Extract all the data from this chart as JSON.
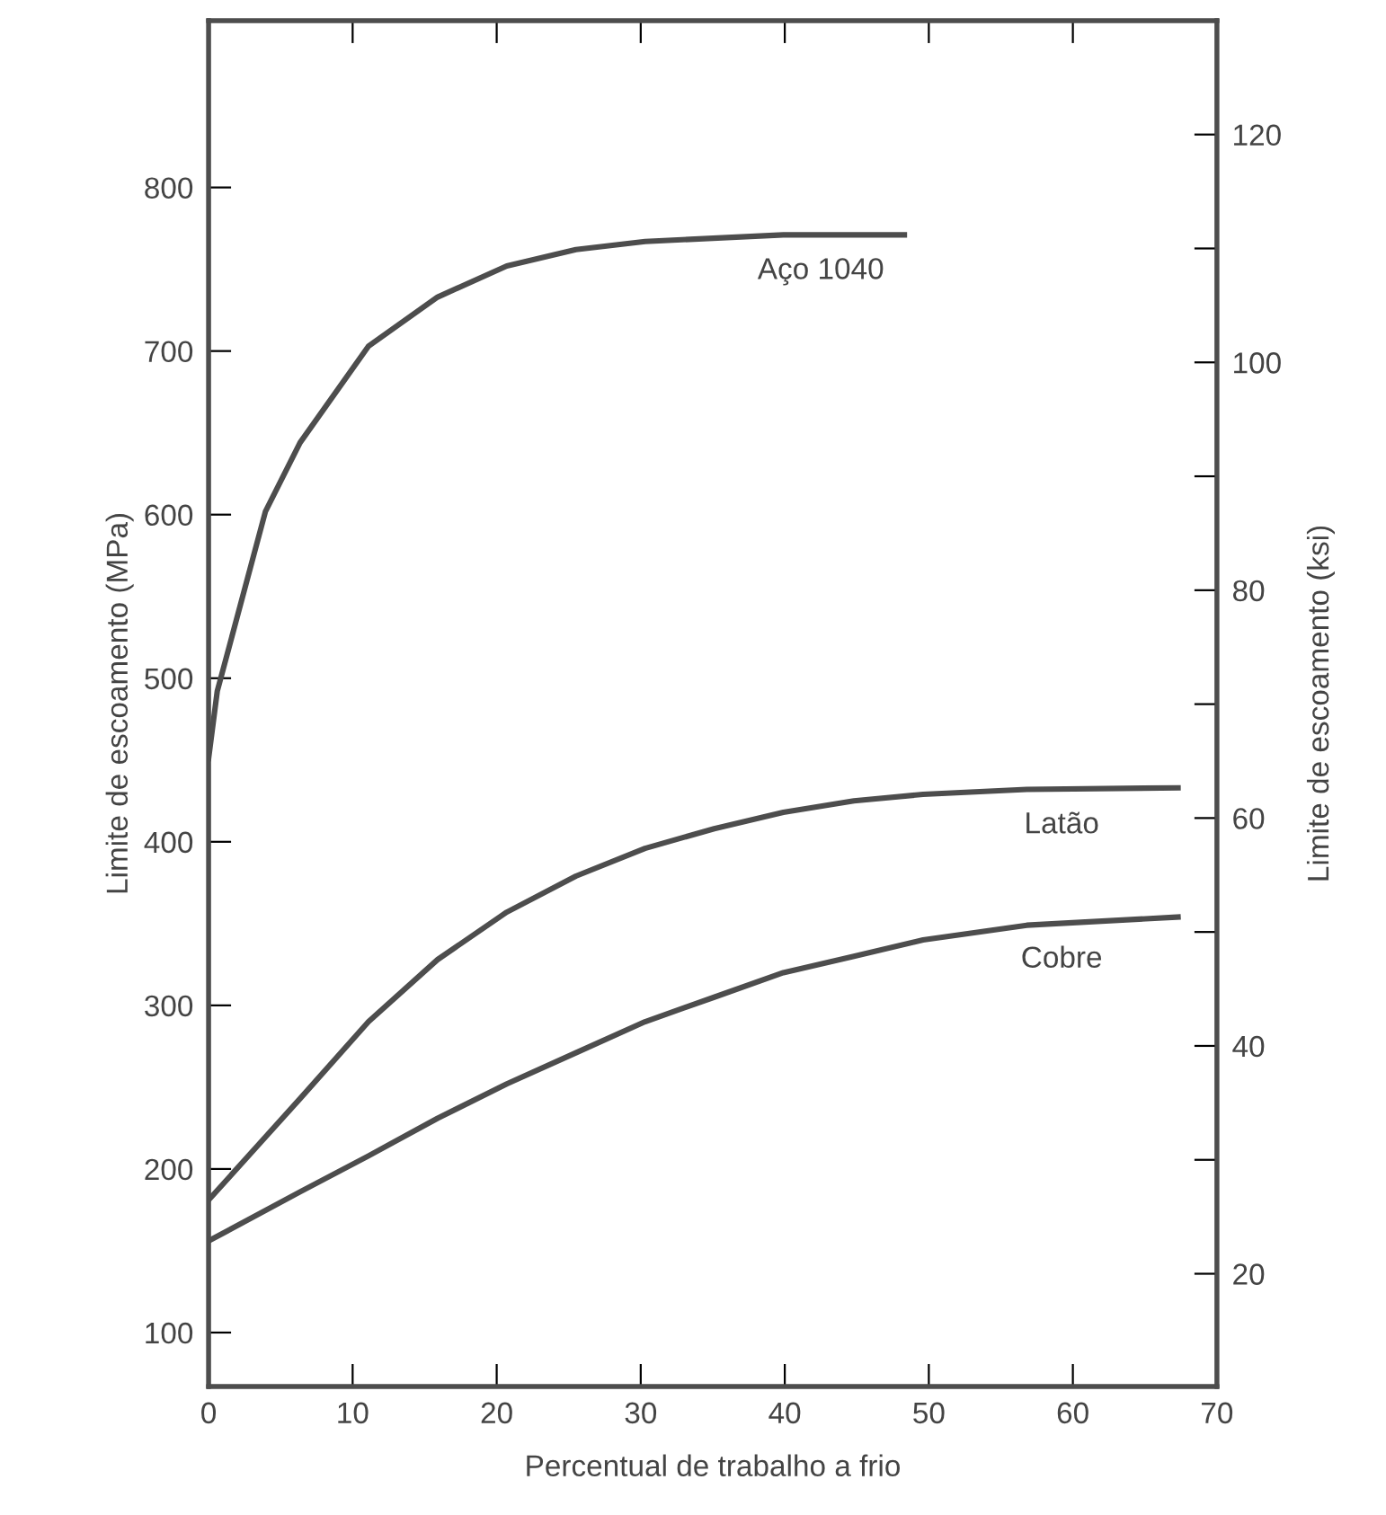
{
  "chart_data": {
    "type": "line",
    "xlabel": "Percentual de trabalho a frio",
    "ylabel": "Limite de escoamento (MPa)",
    "y2label": "Limite de escoamento (ksi)",
    "xlim": [
      0,
      70
    ],
    "xticks": [
      0,
      10,
      20,
      30,
      40,
      50,
      60,
      70
    ],
    "ylim": [
      67,
      902
    ],
    "yticks": [
      100,
      200,
      300,
      400,
      500,
      600,
      700,
      800
    ],
    "y2lim": [
      10.1,
      130
    ],
    "y2ticks": [
      20,
      {
        "value": 30,
        "label": null
      },
      40,
      {
        "value": 50,
        "label": null
      },
      60,
      {
        "value": 70,
        "label": null
      },
      80,
      {
        "value": 90,
        "label": null
      },
      100,
      {
        "value": 110,
        "label": null
      },
      120
    ],
    "grid": false,
    "legend": false,
    "marker": "none",
    "line_style": "solid",
    "series": [
      {
        "name": "Aço 1040",
        "color": "#4d4d4d",
        "x": [
          0,
          0.6,
          3.95,
          6.35,
          11.1,
          15.9,
          20.7,
          25.5,
          30.3,
          39.9,
          48.3
        ],
        "values": [
          451,
          492,
          602,
          644,
          703,
          733,
          752,
          762,
          767,
          771,
          771
        ]
      },
      {
        "name": "Latão",
        "color": "#4d4d4d",
        "x": [
          0,
          6.35,
          11.1,
          15.9,
          20.7,
          25.5,
          30.3,
          35.1,
          39.9,
          44.8,
          49.6,
          56.8,
          67.3
        ],
        "values": [
          181,
          243,
          290,
          328,
          357,
          379,
          396,
          408,
          418,
          425,
          429,
          432,
          433
        ]
      },
      {
        "name": "Cobre",
        "color": "#4d4d4d",
        "x": [
          0,
          6.35,
          11.1,
          15.9,
          20.7,
          25.5,
          30.3,
          35.1,
          39.9,
          44.8,
          49.6,
          56.8,
          67.3
        ],
        "values": [
          156,
          186,
          208,
          231,
          252,
          271,
          290,
          305,
          320,
          330,
          340,
          349,
          354
        ]
      }
    ]
  }
}
